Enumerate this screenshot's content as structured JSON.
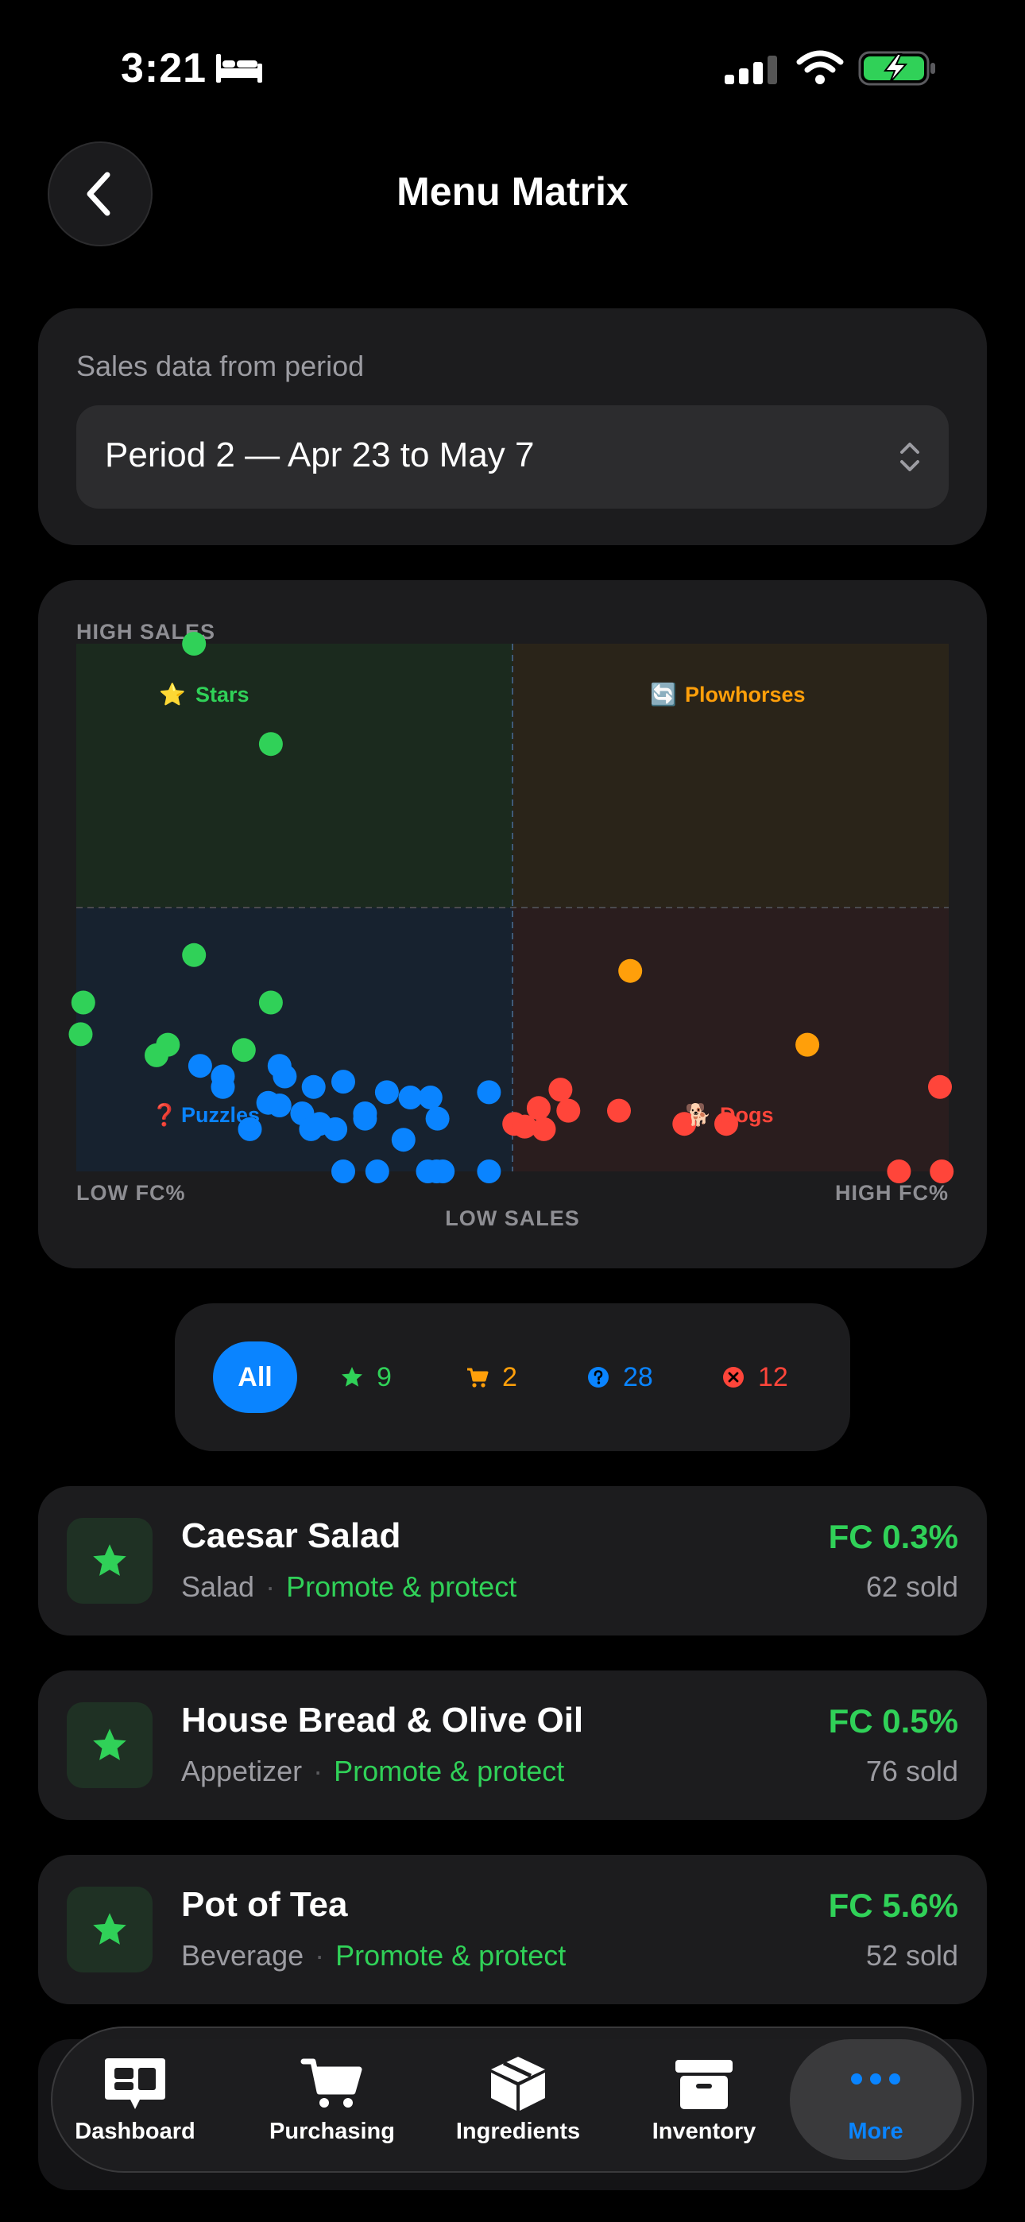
{
  "status_bar": {
    "time": "3:21"
  },
  "header": {
    "title": "Menu Matrix"
  },
  "period": {
    "label": "Sales data from period",
    "selected": "Period 2 — Apr 23 to May 7"
  },
  "matrix": {
    "axis": {
      "top": "HIGH SALES",
      "bottom": "LOW SALES",
      "left": "LOW FC%",
      "right": "HIGH FC%"
    },
    "quadrants": {
      "stars": {
        "label": "Stars",
        "emoji": "⭐"
      },
      "plowhorses": {
        "label": "Plowhorses",
        "emoji": "🔄"
      },
      "puzzles": {
        "label": "Puzzles",
        "emoji": "❓"
      },
      "dogs": {
        "label": "Dogs",
        "emoji": "🐕"
      }
    },
    "colors": {
      "stars": "#30d158",
      "plowhorses": "#ff9f0a",
      "puzzles": "#0a84ff",
      "dogs": "#ff453a"
    },
    "point_scale": {
      "x_range": [
        0,
        100
      ],
      "y_range": [
        0,
        100
      ]
    },
    "points": {
      "stars": [
        [
          13.5,
          100
        ],
        [
          22.3,
          81
        ],
        [
          13.5,
          41
        ],
        [
          22.3,
          32
        ],
        [
          0.8,
          32
        ],
        [
          0.5,
          26
        ],
        [
          10.5,
          24
        ],
        [
          9.2,
          22
        ],
        [
          19.2,
          23
        ]
      ],
      "plowhorses": [
        [
          63.5,
          38
        ],
        [
          83.8,
          24
        ]
      ],
      "puzzles": [
        [
          14.2,
          20
        ],
        [
          16.8,
          18
        ],
        [
          16.8,
          16
        ],
        [
          23.3,
          20
        ],
        [
          23.9,
          18
        ],
        [
          27.2,
          16
        ],
        [
          30.6,
          17
        ],
        [
          22,
          13
        ],
        [
          23.3,
          12.5
        ],
        [
          25.9,
          11
        ],
        [
          27.9,
          9
        ],
        [
          29.7,
          8
        ],
        [
          26.9,
          8
        ],
        [
          19.9,
          8
        ],
        [
          33.1,
          11
        ],
        [
          33.1,
          10
        ],
        [
          35.6,
          15
        ],
        [
          38.3,
          14
        ],
        [
          40.6,
          14
        ],
        [
          41.4,
          10
        ],
        [
          37.5,
          6
        ],
        [
          47.3,
          15
        ],
        [
          30.6,
          0
        ],
        [
          34.5,
          0
        ],
        [
          40.3,
          0
        ],
        [
          41.3,
          0
        ],
        [
          42,
          0
        ],
        [
          47.3,
          0
        ]
      ],
      "dogs": [
        [
          50.2,
          9
        ],
        [
          53,
          12
        ],
        [
          55.5,
          15.5
        ],
        [
          53.6,
          8
        ],
        [
          56.4,
          11.5
        ],
        [
          62.2,
          11.5
        ],
        [
          74.5,
          9
        ],
        [
          99,
          16
        ],
        [
          94.3,
          0
        ],
        [
          99.2,
          0
        ],
        [
          69.7,
          9
        ],
        [
          51.4,
          8.5
        ]
      ]
    }
  },
  "filters": {
    "all": "All",
    "stars_count": "9",
    "plowhorses_count": "2",
    "puzzles_count": "28",
    "dogs_count": "12"
  },
  "items": [
    {
      "name": "Caesar Salad",
      "category": "Salad",
      "action": "Promote & protect",
      "fc": "FC 0.3%",
      "sold": "62 sold"
    },
    {
      "name": "House Bread & Olive Oil",
      "category": "Appetizer",
      "action": "Promote & protect",
      "fc": "FC 0.5%",
      "sold": "76 sold"
    },
    {
      "name": "Pot of Tea",
      "category": "Beverage",
      "action": "Promote & protect",
      "fc": "FC 5.6%",
      "sold": "52 sold"
    }
  ],
  "tabs": {
    "dashboard": "Dashboard",
    "purchasing": "Purchasing",
    "ingredients": "Ingredients",
    "inventory": "Inventory",
    "more": "More"
  }
}
